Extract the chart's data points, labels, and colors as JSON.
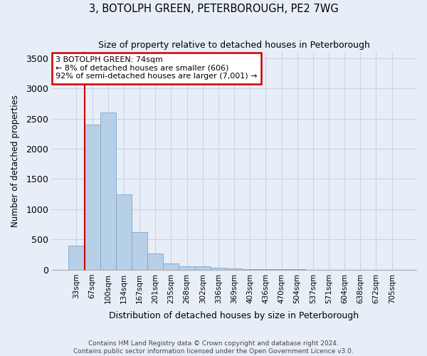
{
  "title": "3, BOTOLPH GREEN, PETERBOROUGH, PE2 7WG",
  "subtitle": "Size of property relative to detached houses in Peterborough",
  "xlabel": "Distribution of detached houses by size in Peterborough",
  "ylabel": "Number of detached properties",
  "footer_line1": "Contains HM Land Registry data © Crown copyright and database right 2024.",
  "footer_line2": "Contains public sector information licensed under the Open Government Licence v3.0.",
  "annotation_line1": "3 BOTOLPH GREEN: 74sqm",
  "annotation_line2": "← 8% of detached houses are smaller (606)",
  "annotation_line3": "92% of semi-detached houses are larger (7,001) →",
  "bar_color": "#b8cfe8",
  "bar_edge_color": "#7ba7cc",
  "vline_color": "#cc0000",
  "annotation_box_edge": "#cc0000",
  "categories": [
    "33sqm",
    "67sqm",
    "100sqm",
    "134sqm",
    "167sqm",
    "201sqm",
    "235sqm",
    "268sqm",
    "302sqm",
    "336sqm",
    "369sqm",
    "403sqm",
    "436sqm",
    "470sqm",
    "504sqm",
    "537sqm",
    "571sqm",
    "604sqm",
    "638sqm",
    "672sqm",
    "705sqm"
  ],
  "values": [
    400,
    2400,
    2600,
    1250,
    625,
    275,
    110,
    60,
    55,
    40,
    25,
    15,
    5,
    5,
    5,
    3,
    3,
    2,
    2,
    2,
    2
  ],
  "ylim": [
    0,
    3600
  ],
  "yticks": [
    0,
    500,
    1000,
    1500,
    2000,
    2500,
    3000,
    3500
  ],
  "grid_color": "#c8d4e8",
  "bg_color": "#e8eef8",
  "vline_x_bar_index": 1,
  "figsize": [
    6.0,
    5.0
  ],
  "dpi": 100
}
